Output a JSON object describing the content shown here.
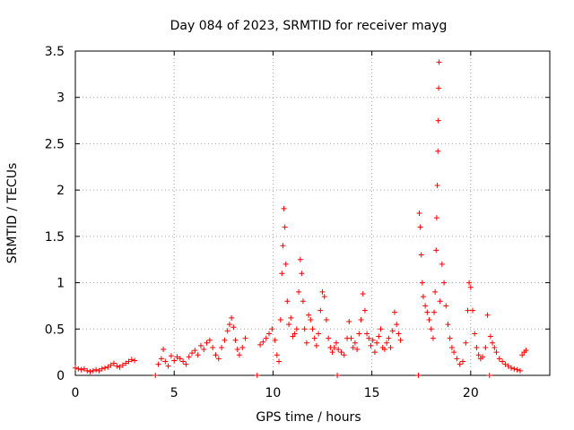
{
  "chart_data": {
    "type": "scatter",
    "title": "Day 084 of 2023, SRMTID for receiver mayg",
    "xlabel": "GPS time / hours",
    "ylabel": "SRMTID / TECUs",
    "xlim": [
      0,
      24
    ],
    "ylim": [
      0,
      3.5
    ],
    "x_ticks": [
      0,
      5,
      10,
      15,
      20
    ],
    "x_tick_labels": [
      "0",
      "5",
      "10",
      "15",
      "20"
    ],
    "y_ticks": [
      0,
      0.5,
      1,
      1.5,
      2,
      2.5,
      3,
      3.5
    ],
    "y_tick_labels": [
      "0",
      "0.5",
      "1",
      "1.5",
      "2",
      "2.5",
      "3",
      "3.5"
    ],
    "grid": true,
    "marker": "+",
    "marker_color": "#ff0000",
    "series": [
      {
        "name": "SRMTID",
        "points": [
          [
            0.0,
            0.08
          ],
          [
            0.15,
            0.07
          ],
          [
            0.3,
            0.06
          ],
          [
            0.45,
            0.07
          ],
          [
            0.6,
            0.05
          ],
          [
            0.75,
            0.04
          ],
          [
            0.9,
            0.05
          ],
          [
            1.05,
            0.06
          ],
          [
            1.2,
            0.05
          ],
          [
            1.35,
            0.07
          ],
          [
            1.5,
            0.08
          ],
          [
            1.65,
            0.09
          ],
          [
            1.8,
            0.11
          ],
          [
            1.95,
            0.13
          ],
          [
            2.1,
            0.1
          ],
          [
            2.25,
            0.09
          ],
          [
            2.4,
            0.11
          ],
          [
            2.55,
            0.13
          ],
          [
            2.7,
            0.15
          ],
          [
            2.85,
            0.17
          ],
          [
            3.0,
            0.16
          ],
          [
            4.05,
            0.0
          ],
          [
            4.2,
            0.12
          ],
          [
            4.35,
            0.18
          ],
          [
            4.45,
            0.28
          ],
          [
            4.55,
            0.15
          ],
          [
            4.7,
            0.1
          ],
          [
            4.85,
            0.21
          ],
          [
            5.0,
            0.16
          ],
          [
            5.15,
            0.2
          ],
          [
            5.3,
            0.18
          ],
          [
            5.45,
            0.15
          ],
          [
            5.6,
            0.12
          ],
          [
            5.75,
            0.2
          ],
          [
            5.9,
            0.24
          ],
          [
            6.05,
            0.27
          ],
          [
            6.2,
            0.22
          ],
          [
            6.35,
            0.32
          ],
          [
            6.5,
            0.28
          ],
          [
            6.65,
            0.35
          ],
          [
            6.8,
            0.38
          ],
          [
            6.95,
            0.3
          ],
          [
            7.1,
            0.22
          ],
          [
            7.25,
            0.18
          ],
          [
            7.4,
            0.3
          ],
          [
            7.55,
            0.38
          ],
          [
            7.7,
            0.48
          ],
          [
            7.8,
            0.55
          ],
          [
            7.9,
            0.62
          ],
          [
            8.0,
            0.52
          ],
          [
            8.1,
            0.38
          ],
          [
            8.2,
            0.28
          ],
          [
            8.3,
            0.22
          ],
          [
            8.45,
            0.3
          ],
          [
            8.6,
            0.4
          ],
          [
            9.2,
            0.0
          ],
          [
            9.35,
            0.33
          ],
          [
            9.5,
            0.36
          ],
          [
            9.65,
            0.4
          ],
          [
            9.8,
            0.45
          ],
          [
            9.95,
            0.5
          ],
          [
            10.1,
            0.38
          ],
          [
            10.2,
            0.22
          ],
          [
            10.3,
            0.15
          ],
          [
            10.38,
            0.6
          ],
          [
            10.45,
            1.1
          ],
          [
            10.5,
            1.4
          ],
          [
            10.55,
            1.8
          ],
          [
            10.6,
            1.6
          ],
          [
            10.65,
            1.2
          ],
          [
            10.72,
            0.8
          ],
          [
            10.8,
            0.55
          ],
          [
            10.9,
            0.62
          ],
          [
            11.0,
            0.42
          ],
          [
            11.1,
            0.45
          ],
          [
            11.2,
            0.5
          ],
          [
            11.3,
            0.9
          ],
          [
            11.38,
            1.25
          ],
          [
            11.45,
            1.1
          ],
          [
            11.52,
            0.8
          ],
          [
            11.6,
            0.5
          ],
          [
            11.7,
            0.35
          ],
          [
            11.8,
            0.65
          ],
          [
            11.9,
            0.6
          ],
          [
            12.0,
            0.5
          ],
          [
            12.1,
            0.4
          ],
          [
            12.2,
            0.32
          ],
          [
            12.3,
            0.45
          ],
          [
            12.4,
            0.7
          ],
          [
            12.5,
            0.9
          ],
          [
            12.6,
            0.85
          ],
          [
            12.7,
            0.6
          ],
          [
            12.8,
            0.4
          ],
          [
            12.9,
            0.3
          ],
          [
            13.0,
            0.25
          ],
          [
            13.1,
            0.3
          ],
          [
            13.2,
            0.35
          ],
          [
            13.25,
            0.0
          ],
          [
            13.3,
            0.28
          ],
          [
            13.45,
            0.25
          ],
          [
            13.6,
            0.22
          ],
          [
            13.75,
            0.4
          ],
          [
            13.85,
            0.58
          ],
          [
            13.95,
            0.4
          ],
          [
            14.05,
            0.3
          ],
          [
            14.15,
            0.35
          ],
          [
            14.25,
            0.28
          ],
          [
            14.35,
            0.45
          ],
          [
            14.45,
            0.6
          ],
          [
            14.55,
            0.88
          ],
          [
            14.65,
            0.7
          ],
          [
            14.75,
            0.45
          ],
          [
            14.85,
            0.4
          ],
          [
            14.95,
            0.32
          ],
          [
            15.05,
            0.38
          ],
          [
            15.15,
            0.25
          ],
          [
            15.25,
            0.35
          ],
          [
            15.35,
            0.42
          ],
          [
            15.45,
            0.5
          ],
          [
            15.55,
            0.3
          ],
          [
            15.65,
            0.28
          ],
          [
            15.75,
            0.35
          ],
          [
            15.85,
            0.4
          ],
          [
            15.95,
            0.3
          ],
          [
            16.05,
            0.48
          ],
          [
            16.15,
            0.68
          ],
          [
            16.25,
            0.55
          ],
          [
            16.35,
            0.45
          ],
          [
            16.45,
            0.38
          ],
          [
            17.35,
            0.0
          ],
          [
            17.4,
            1.75
          ],
          [
            17.45,
            1.6
          ],
          [
            17.5,
            1.3
          ],
          [
            17.55,
            1.0
          ],
          [
            17.6,
            0.85
          ],
          [
            17.7,
            0.75
          ],
          [
            17.8,
            0.68
          ],
          [
            17.9,
            0.6
          ],
          [
            18.0,
            0.5
          ],
          [
            18.1,
            0.4
          ],
          [
            18.15,
            0.68
          ],
          [
            18.2,
            0.9
          ],
          [
            18.25,
            1.35
          ],
          [
            18.28,
            1.7
          ],
          [
            18.31,
            2.05
          ],
          [
            18.34,
            2.42
          ],
          [
            18.36,
            2.75
          ],
          [
            18.38,
            3.1
          ],
          [
            18.4,
            3.38
          ],
          [
            18.45,
            0.8
          ],
          [
            18.55,
            1.2
          ],
          [
            18.65,
            1.0
          ],
          [
            18.75,
            0.75
          ],
          [
            18.85,
            0.55
          ],
          [
            18.95,
            0.4
          ],
          [
            19.05,
            0.3
          ],
          [
            19.15,
            0.25
          ],
          [
            19.3,
            0.18
          ],
          [
            19.45,
            0.12
          ],
          [
            19.6,
            0.15
          ],
          [
            19.75,
            0.35
          ],
          [
            19.85,
            0.7
          ],
          [
            19.92,
            1.0
          ],
          [
            20.0,
            0.95
          ],
          [
            20.1,
            0.7
          ],
          [
            20.2,
            0.45
          ],
          [
            20.3,
            0.3
          ],
          [
            20.4,
            0.22
          ],
          [
            20.5,
            0.18
          ],
          [
            20.6,
            0.2
          ],
          [
            20.75,
            0.3
          ],
          [
            20.85,
            0.65
          ],
          [
            20.95,
            0.0
          ],
          [
            21.0,
            0.42
          ],
          [
            21.1,
            0.35
          ],
          [
            21.2,
            0.3
          ],
          [
            21.3,
            0.25
          ],
          [
            21.45,
            0.18
          ],
          [
            21.6,
            0.15
          ],
          [
            21.75,
            0.12
          ],
          [
            21.9,
            0.1
          ],
          [
            22.05,
            0.08
          ],
          [
            22.2,
            0.07
          ],
          [
            22.35,
            0.06
          ],
          [
            22.5,
            0.05
          ],
          [
            22.6,
            0.22
          ],
          [
            22.7,
            0.25
          ],
          [
            22.8,
            0.27
          ]
        ]
      }
    ]
  }
}
